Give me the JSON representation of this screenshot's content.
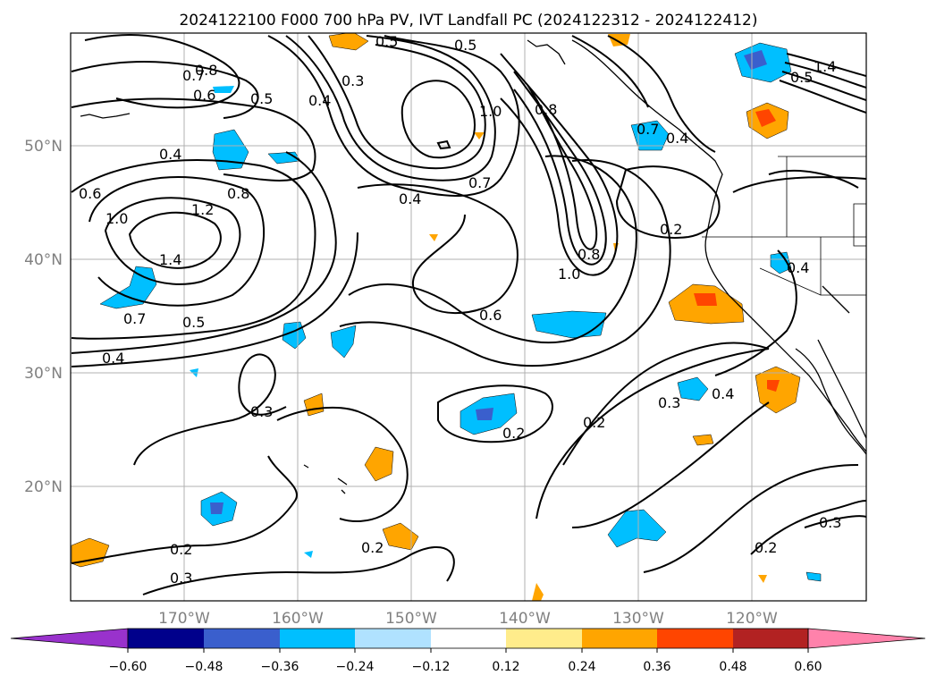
{
  "title": "2024122100 F000 700 hPa PV, IVT Landfall PC (2024122312 - 2024122412)",
  "map": {
    "lon_labels": [
      "170°W",
      "160°W",
      "150°W",
      "140°W",
      "130°W",
      "120°W"
    ],
    "lat_labels": [
      "50°N",
      "40°N",
      "30°N",
      "20°N"
    ]
  },
  "contour_labels": [
    "0.8",
    "0.7",
    "0.6",
    "0.5",
    "0.5",
    "0.4",
    "0.3",
    "0.5",
    "1.0",
    "0.8",
    "0.4",
    "0.8",
    "1.0",
    "1.2",
    "1.4",
    "0.7",
    "0.5",
    "0.7",
    "0.6",
    "0.4",
    "0.4",
    "0.6",
    "0.7",
    "1.0",
    "0.8",
    "0.2",
    "0.4",
    "0.3",
    "0.2",
    "0.2",
    "0.3",
    "0.4",
    "0.2",
    "0.2",
    "0.3",
    "0.3",
    "0.2",
    "0.4",
    "1.4",
    "0.5"
  ],
  "colorbar": {
    "ticks": [
      "−0.60",
      "−0.48",
      "−0.36",
      "−0.24",
      "−0.12",
      "0.12",
      "0.24",
      "0.36",
      "0.48",
      "0.60"
    ],
    "colors": {
      "lt_neg": "#9932cc",
      "neg_5": "#00008b",
      "neg_4": "#3a5fcd",
      "neg_3": "#00bfff",
      "neg_2": "#b0e2ff",
      "zero": "#ffffff",
      "pos_2": "#ffec8b",
      "pos_3": "#ffa500",
      "pos_4": "#ff4500",
      "pos_5": "#b22222",
      "gt_pos": "#ff82ab"
    }
  },
  "shading_colors": {
    "neg_light": "#b0e2ff",
    "neg_mid": "#00bfff",
    "neg_strong": "#3a5fcd",
    "pos_light": "#ffec8b",
    "pos_mid": "#ffa500",
    "pos_strong": "#ff4500"
  }
}
